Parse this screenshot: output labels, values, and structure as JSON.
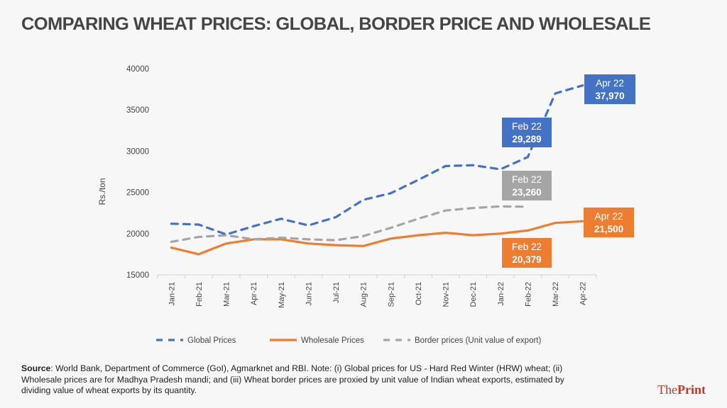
{
  "title": "COMPARING WHEAT PRICES: GLOBAL, BORDER PRICE AND WHOLESALE",
  "source_label": "Source",
  "source_text": ": World Bank, Department of Commerce (GoI), Agmarknet and RBI. Note: (i) Global prices for US - Hard Red Winter (HRW) wheat; (ii) Wholesale prices are for Madhya Pradesh mandi; and (iii) Wheat border prices are proxied by unit value of Indian wheat exports, estimated by dividing value of wheat exports by its quantity.",
  "brand": {
    "part1": "The",
    "part2": "Print"
  },
  "chart_data": {
    "type": "line",
    "title": "COMPARING WHEAT PRICES: GLOBAL, BORDER PRICE AND WHOLESALE",
    "xlabel": "",
    "ylabel": "Rs./ton",
    "ylim": [
      15000,
      40000
    ],
    "yticks": [
      15000,
      20000,
      25000,
      30000,
      35000,
      40000
    ],
    "grid": false,
    "legend_position": "bottom",
    "categories": [
      "Jan-21",
      "Feb-21",
      "Mar-21",
      "Apr-21",
      "May-21",
      "Jun-21",
      "Jul-21",
      "Aug-21",
      "Sep-21",
      "Oct-21",
      "Nov-21",
      "Dec-21",
      "Jan-22",
      "Feb-22",
      "Mar-22",
      "Apr-22"
    ],
    "series": [
      {
        "name": "Global Prices",
        "color": "#4472c4",
        "style": "dashed",
        "values": [
          21200,
          21100,
          19900,
          20900,
          21800,
          21000,
          22000,
          24100,
          24900,
          26500,
          28200,
          28300,
          27800,
          29289,
          37000,
          37970
        ]
      },
      {
        "name": "Wholesale Prices",
        "color": "#ed7d31",
        "style": "solid",
        "values": [
          18300,
          17500,
          18800,
          19300,
          19300,
          18800,
          18600,
          18500,
          19400,
          19800,
          20100,
          19800,
          20000,
          20379,
          21300,
          21500
        ]
      },
      {
        "name": "Border prices (Unit value of export)",
        "color": "#a5a5a5",
        "style": "dashed",
        "values": [
          19000,
          19600,
          19800,
          19300,
          19500,
          19300,
          19200,
          19700,
          20700,
          21800,
          22800,
          23100,
          23300,
          23260,
          null,
          null
        ]
      }
    ],
    "annotations": [
      {
        "series": "Global Prices",
        "label": "Apr 22",
        "value": "37,970",
        "color": "#4472c4"
      },
      {
        "series": "Global Prices",
        "label": "Feb 22",
        "value": "29,289",
        "color": "#4472c4"
      },
      {
        "series": "Border prices (Unit value of export)",
        "label": "Feb 22",
        "value": "23,260",
        "color": "#a5a5a5"
      },
      {
        "series": "Wholesale Prices",
        "label": "Apr 22",
        "value": "21,500",
        "color": "#ed7d31"
      },
      {
        "series": "Wholesale Prices",
        "label": "Feb 22",
        "value": "20,379",
        "color": "#ed7d31"
      }
    ]
  }
}
